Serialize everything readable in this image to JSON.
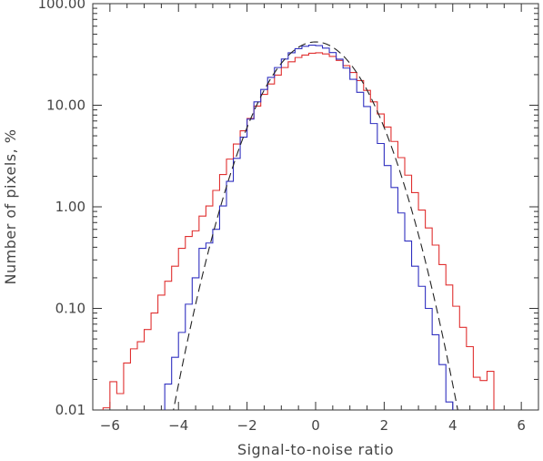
{
  "chart_data": {
    "type": "line",
    "xlabel": "Signal-to-noise ratio",
    "ylabel": "Number of pixels, %",
    "yscale": "log",
    "xlim": [
      -6.5,
      6.5
    ],
    "ylim": [
      0.01,
      100
    ],
    "grid": false,
    "legend": "none",
    "x_ticks": [
      {
        "value": -6,
        "label": "−6"
      },
      {
        "value": -4,
        "label": "−4"
      },
      {
        "value": -2,
        "label": "−2"
      },
      {
        "value": 0,
        "label": "0"
      },
      {
        "value": 2,
        "label": "2"
      },
      {
        "value": 4,
        "label": "4"
      },
      {
        "value": 6,
        "label": "6"
      }
    ],
    "y_ticks": [
      {
        "value": 0.01,
        "label": "0.01"
      },
      {
        "value": 0.1,
        "label": "0.10"
      },
      {
        "value": 1,
        "label": "1.00"
      },
      {
        "value": 10,
        "label": "10.00"
      },
      {
        "value": 100,
        "label": "100.00"
      }
    ],
    "series": [
      {
        "style": "step",
        "color": "#e03030",
        "bin_edges": [
          -6.4,
          -6.2,
          -6.0,
          -5.8,
          -5.6,
          -5.4,
          -5.2,
          -5.0,
          -4.8,
          -4.6,
          -4.4,
          -4.2,
          -4.0,
          -3.8,
          -3.6,
          -3.4,
          -3.2,
          -3.0,
          -2.8,
          -2.6,
          -2.4,
          -2.2,
          -2.0,
          -1.8,
          -1.6,
          -1.4,
          -1.2,
          -1.0,
          -0.8,
          -0.6,
          -0.4,
          -0.2,
          0.0,
          0.2,
          0.4,
          0.6,
          0.8,
          1.0,
          1.2,
          1.4,
          1.6,
          1.8,
          2.0,
          2.2,
          2.4,
          2.6,
          2.8,
          3.0,
          3.2,
          3.4,
          3.6,
          3.8,
          4.0,
          4.2,
          4.4,
          4.6,
          4.8,
          5.0,
          5.2
        ],
        "values": [
          0.0085,
          0.0105,
          0.019,
          0.0145,
          0.029,
          0.04,
          0.047,
          0.062,
          0.09,
          0.135,
          0.185,
          0.26,
          0.39,
          0.51,
          0.58,
          0.81,
          1.02,
          1.45,
          2.08,
          2.95,
          4.15,
          5.6,
          7.4,
          9.8,
          12.8,
          16.2,
          19.8,
          23.5,
          26.8,
          29.5,
          31.2,
          32.5,
          32.8,
          32.0,
          30.2,
          27.6,
          24.5,
          21.0,
          17.5,
          14.0,
          10.8,
          8.2,
          6.1,
          4.4,
          3.05,
          2.05,
          1.38,
          0.93,
          0.62,
          0.42,
          0.27,
          0.17,
          0.105,
          0.065,
          0.042,
          0.021,
          0.0195,
          0.024
        ]
      },
      {
        "style": "step",
        "color": "#3030c0",
        "bin_edges": [
          -4.6,
          -4.4,
          -4.2,
          -4.0,
          -3.8,
          -3.6,
          -3.4,
          -3.2,
          -3.0,
          -2.8,
          -2.6,
          -2.4,
          -2.2,
          -2.0,
          -1.8,
          -1.6,
          -1.4,
          -1.2,
          -1.0,
          -0.8,
          -0.6,
          -0.4,
          -0.2,
          0.0,
          0.2,
          0.4,
          0.6,
          0.8,
          1.0,
          1.2,
          1.4,
          1.6,
          1.8,
          2.0,
          2.2,
          2.4,
          2.6,
          2.8,
          3.0,
          3.2,
          3.4,
          3.6,
          3.8,
          4.0,
          4.2
        ],
        "values": [
          0.0095,
          0.018,
          0.033,
          0.058,
          0.11,
          0.2,
          0.39,
          0.44,
          0.6,
          1.02,
          1.78,
          3.0,
          4.85,
          7.3,
          10.8,
          14.3,
          18.8,
          23.5,
          28.5,
          32.8,
          36.0,
          38.0,
          39.0,
          38.6,
          36.5,
          33.0,
          28.4,
          23.2,
          18.0,
          13.4,
          9.7,
          6.6,
          4.2,
          2.55,
          1.55,
          0.87,
          0.46,
          0.26,
          0.165,
          0.1,
          0.055,
          0.028,
          0.012,
          0.0075
        ]
      },
      {
        "style": "dashed",
        "color": "#222222",
        "gaussian": {
          "peak": 42,
          "mean": 0,
          "sigma": 1.015
        },
        "x_range": [
          -4.35,
          4.35
        ]
      }
    ]
  }
}
